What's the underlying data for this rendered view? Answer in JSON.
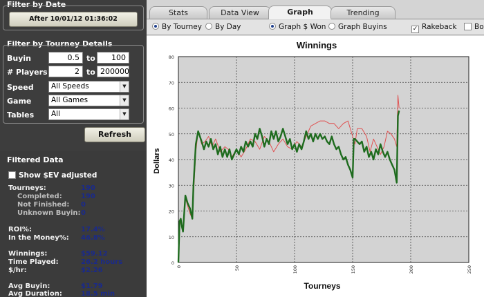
{
  "filter_date": {
    "title": "Filter by Date",
    "button_label": "After 10/01/12 01:36:02"
  },
  "filter_details": {
    "title": "Filter by Tourney Details",
    "buyin_label": "Buyin",
    "buyin_min": "0.5",
    "buyin_max": "100",
    "players_label": "# Players",
    "players_min": "2",
    "players_max": "200000",
    "to_label": "to",
    "speed_label": "Speed",
    "speed_value": "All Speeds",
    "game_label": "Game",
    "game_value": "All Games",
    "tables_label": "Tables",
    "tables_value": "All",
    "refresh_label": "Refresh"
  },
  "filtered": {
    "title": "Filtered Data",
    "ev_label": "Show $EV adjusted",
    "stats": {
      "tourneys_label": "Tourneys:",
      "tourneys": "190",
      "completed_label": "Completed:",
      "completed": "190",
      "not_finished_label": "Not Finished:",
      "not_finished": "0",
      "unknown_label": "Unknown Buyin:",
      "unknown": "0",
      "roi_label": "ROI%:",
      "roi": "17.4%",
      "itm_label": "In the Money%:",
      "itm": "46.8%",
      "winnings_label": "Winnings:",
      "winnings": "$59.12",
      "time_label": "Time Played:",
      "time": "26.2 hours",
      "hr_label": "$/hr:",
      "hr": "$2.26",
      "avg_buyin_label": "Avg Buyin:",
      "avg_buyin": "$1.79",
      "avg_dur_label": "Avg Duration:",
      "avg_dur": "18.5 min"
    }
  },
  "tabs": [
    "Stats",
    "Data View",
    "Graph",
    "Trending"
  ],
  "options": {
    "by_tourney": "By Tourney",
    "by_day": "By Day",
    "graph_won": "Graph $ Won",
    "graph_buyins": "Graph Buyins",
    "rakeback": "Rakeback",
    "bonus": "Bon"
  },
  "colors": {
    "plot_bg": "#d3d3d3",
    "winnings_line": "#1e6b1e",
    "alt_line": "#e05050"
  },
  "chart_data": {
    "type": "line",
    "title": "Winnings",
    "xlabel": "Tourneys",
    "ylabel": "Dollars",
    "xlim": [
      0,
      250
    ],
    "ylim": [
      0,
      80
    ],
    "xticks": [
      0,
      50,
      100,
      150,
      200,
      250
    ],
    "yticks": [
      0,
      10,
      20,
      30,
      40,
      50,
      60,
      70,
      80
    ],
    "grid": true,
    "series": [
      {
        "color": "#e05050",
        "points": [
          [
            0,
            0
          ],
          [
            1,
            14
          ],
          [
            2,
            16
          ],
          [
            4,
            13
          ],
          [
            5,
            18
          ],
          [
            6,
            25
          ],
          [
            8,
            22
          ],
          [
            10,
            19
          ],
          [
            12,
            17
          ],
          [
            13,
            26
          ],
          [
            15,
            43
          ],
          [
            17,
            51
          ],
          [
            20,
            46
          ],
          [
            23,
            47
          ],
          [
            26,
            49
          ],
          [
            29,
            45
          ],
          [
            32,
            48
          ],
          [
            36,
            43
          ],
          [
            40,
            45
          ],
          [
            43,
            44
          ],
          [
            46,
            41
          ],
          [
            50,
            44
          ],
          [
            54,
            41
          ],
          [
            58,
            44
          ],
          [
            62,
            48
          ],
          [
            66,
            47
          ],
          [
            70,
            44
          ],
          [
            74,
            49
          ],
          [
            78,
            47
          ],
          [
            82,
            43
          ],
          [
            86,
            46
          ],
          [
            90,
            48
          ],
          [
            94,
            45
          ],
          [
            98,
            44
          ],
          [
            102,
            47
          ],
          [
            106,
            45
          ],
          [
            110,
            49
          ],
          [
            114,
            53
          ],
          [
            118,
            54
          ],
          [
            122,
            55
          ],
          [
            126,
            55
          ],
          [
            130,
            54
          ],
          [
            134,
            54
          ],
          [
            138,
            52
          ],
          [
            142,
            54
          ],
          [
            146,
            55
          ],
          [
            150,
            49
          ],
          [
            152,
            46
          ],
          [
            154,
            52
          ],
          [
            158,
            52
          ],
          [
            162,
            49
          ],
          [
            165,
            43
          ],
          [
            168,
            48
          ],
          [
            171,
            45
          ],
          [
            174,
            42
          ],
          [
            177,
            45
          ],
          [
            180,
            51
          ],
          [
            183,
            50
          ],
          [
            186,
            48
          ],
          [
            188,
            45
          ],
          [
            189,
            65
          ],
          [
            190,
            60
          ]
        ]
      },
      {
        "color": "#1e6b1e",
        "points": [
          [
            0,
            0
          ],
          [
            1,
            16
          ],
          [
            2,
            17
          ],
          [
            3,
            14
          ],
          [
            4,
            12
          ],
          [
            6,
            26
          ],
          [
            8,
            23
          ],
          [
            10,
            21
          ],
          [
            12,
            17
          ],
          [
            13,
            30
          ],
          [
            15,
            46
          ],
          [
            17,
            51
          ],
          [
            20,
            47
          ],
          [
            22,
            44
          ],
          [
            24,
            47
          ],
          [
            26,
            45
          ],
          [
            28,
            48
          ],
          [
            30,
            44
          ],
          [
            32,
            46
          ],
          [
            34,
            42
          ],
          [
            36,
            45
          ],
          [
            38,
            41
          ],
          [
            40,
            44
          ],
          [
            42,
            41
          ],
          [
            44,
            44
          ],
          [
            46,
            40
          ],
          [
            48,
            42
          ],
          [
            50,
            44
          ],
          [
            52,
            42
          ],
          [
            54,
            45
          ],
          [
            56,
            43
          ],
          [
            58,
            47
          ],
          [
            60,
            45
          ],
          [
            62,
            47
          ],
          [
            64,
            45
          ],
          [
            66,
            50
          ],
          [
            68,
            48
          ],
          [
            70,
            52
          ],
          [
            72,
            49
          ],
          [
            74,
            45
          ],
          [
            76,
            48
          ],
          [
            78,
            46
          ],
          [
            80,
            51
          ],
          [
            82,
            48
          ],
          [
            84,
            51
          ],
          [
            86,
            47
          ],
          [
            88,
            49
          ],
          [
            90,
            52
          ],
          [
            92,
            49
          ],
          [
            94,
            46
          ],
          [
            96,
            48
          ],
          [
            98,
            44
          ],
          [
            100,
            46
          ],
          [
            102,
            43
          ],
          [
            104,
            46
          ],
          [
            106,
            44
          ],
          [
            108,
            47
          ],
          [
            110,
            51
          ],
          [
            112,
            48
          ],
          [
            114,
            50
          ],
          [
            116,
            47
          ],
          [
            118,
            50
          ],
          [
            120,
            48
          ],
          [
            122,
            50
          ],
          [
            124,
            48
          ],
          [
            126,
            49
          ],
          [
            128,
            47
          ],
          [
            130,
            46
          ],
          [
            132,
            49
          ],
          [
            134,
            46
          ],
          [
            136,
            44
          ],
          [
            138,
            45
          ],
          [
            140,
            42
          ],
          [
            142,
            40
          ],
          [
            144,
            41
          ],
          [
            146,
            38
          ],
          [
            148,
            36
          ],
          [
            150,
            33
          ],
          [
            151,
            48
          ],
          [
            152,
            48
          ],
          [
            154,
            47
          ],
          [
            156,
            46
          ],
          [
            158,
            47
          ],
          [
            160,
            43
          ],
          [
            162,
            45
          ],
          [
            164,
            41
          ],
          [
            166,
            43
          ],
          [
            168,
            40
          ],
          [
            170,
            44
          ],
          [
            172,
            42
          ],
          [
            174,
            46
          ],
          [
            176,
            43
          ],
          [
            178,
            41
          ],
          [
            180,
            43
          ],
          [
            182,
            40
          ],
          [
            184,
            38
          ],
          [
            186,
            36
          ],
          [
            188,
            31
          ],
          [
            189,
            57
          ],
          [
            190,
            59
          ]
        ]
      }
    ]
  }
}
